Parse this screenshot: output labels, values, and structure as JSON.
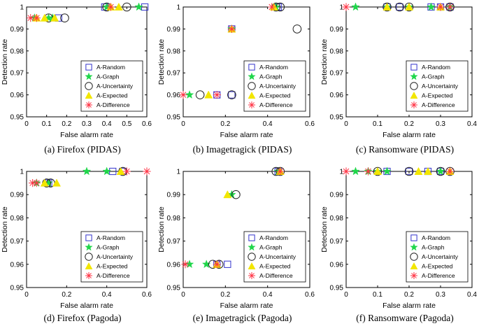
{
  "figure": {
    "legend_entries": [
      "A-Random",
      "A-Graph",
      "A-Uncertainty",
      "A-Expected",
      "A-Difference"
    ],
    "marker_shapes": {
      "A-Random": "square",
      "A-Graph": "star",
      "A-Uncertainty": "circle",
      "A-Expected": "triangle",
      "A-Difference": "asterisk"
    },
    "colors": {
      "A-Random": "#3333cc",
      "A-Graph": "#1fd64a",
      "A-Uncertainty": "#222222",
      "A-Expected": "#f2e600",
      "A-Difference": "#ff3344"
    }
  },
  "chart_data": [
    {
      "type": "scatter",
      "caption": "(a) Firefox (PIDAS)",
      "xlabel": "False alarm rate",
      "ylabel": "Detection rate",
      "xlim": [
        0,
        0.6
      ],
      "ylim": [
        0.95,
        1
      ],
      "xticks": [
        "0",
        "0.1",
        "0.2",
        "0.3",
        "0.4",
        "0.5",
        "0.6"
      ],
      "yticks": [
        "0.95",
        "0.96",
        "0.97",
        "0.98",
        "0.99",
        "1"
      ],
      "legend_position": "lower-right",
      "series": [
        {
          "name": "A-Random",
          "points": [
            [
              0.16,
              0.995
            ],
            [
              0.39,
              1.0
            ],
            [
              0.59,
              1.0
            ]
          ]
        },
        {
          "name": "A-Graph",
          "points": [
            [
              0.04,
              0.995
            ],
            [
              0.11,
              0.995
            ],
            [
              0.13,
              0.995
            ],
            [
              0.4,
              1.0
            ],
            [
              0.56,
              1.0
            ]
          ]
        },
        {
          "name": "A-Uncertainty",
          "points": [
            [
              0.11,
              0.995
            ],
            [
              0.19,
              0.995
            ],
            [
              0.4,
              1.0
            ],
            [
              0.5,
              1.0
            ]
          ]
        },
        {
          "name": "A-Expected",
          "points": [
            [
              0.05,
              0.995
            ],
            [
              0.09,
              0.995
            ],
            [
              0.14,
              0.995
            ],
            [
              0.42,
              1.0
            ],
            [
              0.46,
              1.0
            ]
          ]
        },
        {
          "name": "A-Difference",
          "points": [
            [
              0.02,
              0.995
            ],
            [
              0.05,
              0.995
            ],
            [
              0.42,
              1.0
            ]
          ]
        }
      ]
    },
    {
      "type": "scatter",
      "caption": "(b) Imagetragick (PIDAS)",
      "xlabel": "False alarm rate",
      "ylabel": "Detection rate",
      "xlim": [
        0,
        0.6
      ],
      "ylim": [
        0.95,
        1
      ],
      "xticks": [
        "0",
        "0.2",
        "0.4",
        "0.6"
      ],
      "yticks": [
        "0.95",
        "0.96",
        "0.97",
        "0.98",
        "0.99",
        "1"
      ],
      "legend_position": "lower-right",
      "series": [
        {
          "name": "A-Random",
          "points": [
            [
              0.16,
              0.96
            ],
            [
              0.23,
              0.96
            ],
            [
              0.23,
              0.99
            ],
            [
              0.45,
              1.0
            ]
          ]
        },
        {
          "name": "A-Graph",
          "points": [
            [
              0.03,
              0.96
            ],
            [
              0.23,
              0.99
            ],
            [
              0.44,
              1.0
            ]
          ]
        },
        {
          "name": "A-Uncertainty",
          "points": [
            [
              0.08,
              0.96
            ],
            [
              0.23,
              0.96
            ],
            [
              0.44,
              1.0
            ],
            [
              0.46,
              1.0
            ],
            [
              0.54,
              0.99
            ]
          ]
        },
        {
          "name": "A-Expected",
          "points": [
            [
              0.12,
              0.96
            ],
            [
              0.23,
              0.99
            ],
            [
              0.43,
              1.0
            ]
          ]
        },
        {
          "name": "A-Difference",
          "points": [
            [
              0.0,
              0.96
            ],
            [
              0.16,
              0.96
            ],
            [
              0.23,
              0.99
            ],
            [
              0.42,
              1.0
            ]
          ]
        }
      ]
    },
    {
      "type": "scatter",
      "caption": "(c) Ransomware (PIDAS)",
      "xlabel": "False alarm rate",
      "ylabel": "Detection rate",
      "xlim": [
        0,
        0.4
      ],
      "ylim": [
        0.95,
        1
      ],
      "xticks": [
        "0",
        "0.1",
        "0.2",
        "0.3",
        "0.4"
      ],
      "yticks": [
        "0.95",
        "0.96",
        "0.97",
        "0.98",
        "0.99",
        "1"
      ],
      "legend_position": "lower-right",
      "series": [
        {
          "name": "A-Random",
          "points": [
            [
              0.13,
              1.0
            ],
            [
              0.17,
              1.0
            ],
            [
              0.27,
              1.0
            ],
            [
              0.3,
              1.0
            ],
            [
              0.33,
              1.0
            ]
          ]
        },
        {
          "name": "A-Graph",
          "points": [
            [
              0.03,
              1.0
            ],
            [
              0.13,
              1.0
            ],
            [
              0.2,
              1.0
            ],
            [
              0.27,
              1.0
            ],
            [
              0.33,
              1.0
            ]
          ]
        },
        {
          "name": "A-Uncertainty",
          "points": [
            [
              0.13,
              1.0
            ],
            [
              0.17,
              1.0
            ],
            [
              0.2,
              1.0
            ],
            [
              0.33,
              1.0
            ]
          ]
        },
        {
          "name": "A-Expected",
          "points": [
            [
              0.13,
              1.0
            ],
            [
              0.2,
              1.0
            ],
            [
              0.3,
              1.0
            ]
          ]
        },
        {
          "name": "A-Difference",
          "points": [
            [
              0.0,
              1.0
            ],
            [
              0.3,
              1.0
            ],
            [
              0.33,
              1.0
            ]
          ]
        }
      ]
    },
    {
      "type": "scatter",
      "caption": "(d) Firefox (Pagoda)",
      "xlabel": "False alarm rate",
      "ylabel": "Detection rate",
      "xlim": [
        0,
        0.6
      ],
      "ylim": [
        0.95,
        1
      ],
      "xticks": [
        "0",
        "0.2",
        "0.4",
        "0.6"
      ],
      "yticks": [
        "0.95",
        "0.96",
        "0.97",
        "0.98",
        "0.99",
        "1"
      ],
      "legend_position": "lower-right",
      "series": [
        {
          "name": "A-Random",
          "points": [
            [
              0.11,
              0.995
            ],
            [
              0.43,
              1.0
            ],
            [
              0.48,
              1.0
            ]
          ]
        },
        {
          "name": "A-Graph",
          "points": [
            [
              0.05,
              0.995
            ],
            [
              0.11,
              0.995
            ],
            [
              0.3,
              1.0
            ],
            [
              0.4,
              1.0
            ]
          ]
        },
        {
          "name": "A-Uncertainty",
          "points": [
            [
              0.1,
              0.995
            ],
            [
              0.12,
              0.995
            ],
            [
              0.48,
              1.0
            ]
          ]
        },
        {
          "name": "A-Expected",
          "points": [
            [
              0.09,
              0.995
            ],
            [
              0.15,
              0.995
            ],
            [
              0.47,
              1.0
            ]
          ]
        },
        {
          "name": "A-Difference",
          "points": [
            [
              0.03,
              0.995
            ],
            [
              0.05,
              0.995
            ],
            [
              0.5,
              1.0
            ],
            [
              0.6,
              1.0
            ]
          ]
        }
      ]
    },
    {
      "type": "scatter",
      "caption": "(e) Imagetragick (Pagoda)",
      "xlabel": "False alarm rate",
      "ylabel": "Detection rate",
      "xlim": [
        0,
        0.6
      ],
      "ylim": [
        0.95,
        1
      ],
      "xticks": [
        "0",
        "0.2",
        "0.4",
        "0.6"
      ],
      "yticks": [
        "0.95",
        "0.96",
        "0.97",
        "0.98",
        "0.99",
        "1"
      ],
      "legend_position": "lower-right",
      "series": [
        {
          "name": "A-Random",
          "points": [
            [
              0.16,
              0.96
            ],
            [
              0.21,
              0.96
            ],
            [
              0.45,
              1.0
            ]
          ]
        },
        {
          "name": "A-Graph",
          "points": [
            [
              0.03,
              0.96
            ],
            [
              0.11,
              0.96
            ],
            [
              0.23,
              0.99
            ],
            [
              0.45,
              1.0
            ]
          ]
        },
        {
          "name": "A-Uncertainty",
          "points": [
            [
              0.14,
              0.96
            ],
            [
              0.17,
              0.96
            ],
            [
              0.25,
              0.99
            ],
            [
              0.44,
              1.0
            ],
            [
              0.46,
              1.0
            ]
          ]
        },
        {
          "name": "A-Expected",
          "points": [
            [
              0.16,
              0.96
            ],
            [
              0.21,
              0.99
            ],
            [
              0.46,
              1.0
            ]
          ]
        },
        {
          "name": "A-Difference",
          "points": [
            [
              0.01,
              0.96
            ],
            [
              0.16,
              0.96
            ],
            [
              0.46,
              1.0
            ]
          ]
        }
      ]
    },
    {
      "type": "scatter",
      "caption": "(f) Ransomware (Pagoda)",
      "xlabel": "False alarm rate",
      "ylabel": "Detection rate",
      "xlim": [
        0,
        0.4
      ],
      "ylim": [
        0.95,
        1
      ],
      "xticks": [
        "0",
        "0.1",
        "0.2",
        "0.3",
        "0.4"
      ],
      "yticks": [
        "0.95",
        "0.96",
        "0.97",
        "0.98",
        "0.99",
        "1"
      ],
      "legend_position": "lower-right",
      "series": [
        {
          "name": "A-Random",
          "points": [
            [
              0.13,
              1.0
            ],
            [
              0.2,
              1.0
            ],
            [
              0.26,
              1.0
            ],
            [
              0.3,
              1.0
            ]
          ]
        },
        {
          "name": "A-Graph",
          "points": [
            [
              0.03,
              1.0
            ],
            [
              0.07,
              1.0
            ],
            [
              0.1,
              1.0
            ],
            [
              0.13,
              1.0
            ],
            [
              0.3,
              1.0
            ]
          ]
        },
        {
          "name": "A-Uncertainty",
          "points": [
            [
              0.1,
              1.0
            ],
            [
              0.2,
              1.0
            ],
            [
              0.3,
              1.0
            ],
            [
              0.33,
              1.0
            ]
          ]
        },
        {
          "name": "A-Expected",
          "points": [
            [
              0.1,
              1.0
            ],
            [
              0.23,
              1.0
            ],
            [
              0.26,
              1.0
            ],
            [
              0.33,
              1.0
            ]
          ]
        },
        {
          "name": "A-Difference",
          "points": [
            [
              0.0,
              1.0
            ],
            [
              0.07,
              1.0
            ],
            [
              0.33,
              1.0
            ]
          ]
        }
      ]
    }
  ]
}
